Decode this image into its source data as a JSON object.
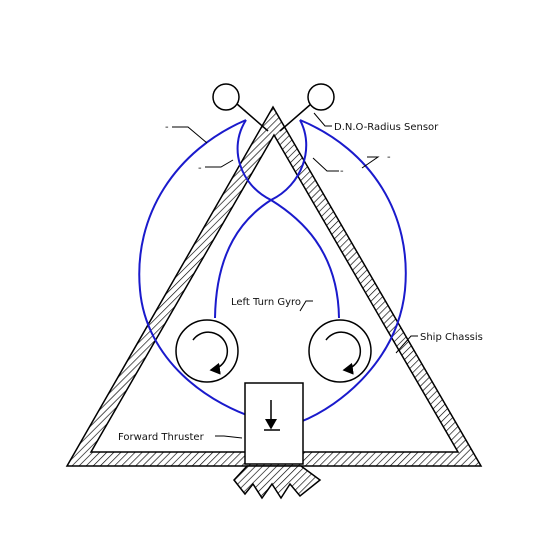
{
  "labels": {
    "sensor": "D.N.O-Radius Sensor",
    "chassis": "Ship Chassis",
    "gyro": "Left Turn Gyro",
    "thruster": "Forward Thruster",
    "dash_upper_left": "-",
    "dash_mid_left": "-",
    "dash_mid_right": "-",
    "dash_upper_right": "-"
  },
  "colors": {
    "wire": "#1a1acc",
    "ink": "#000000",
    "background": "#ffffff"
  },
  "icons": {
    "gyro": "circular-arrow-icon",
    "thruster": "down-arrow-icon",
    "sensor": "circle-sensor-icon"
  }
}
